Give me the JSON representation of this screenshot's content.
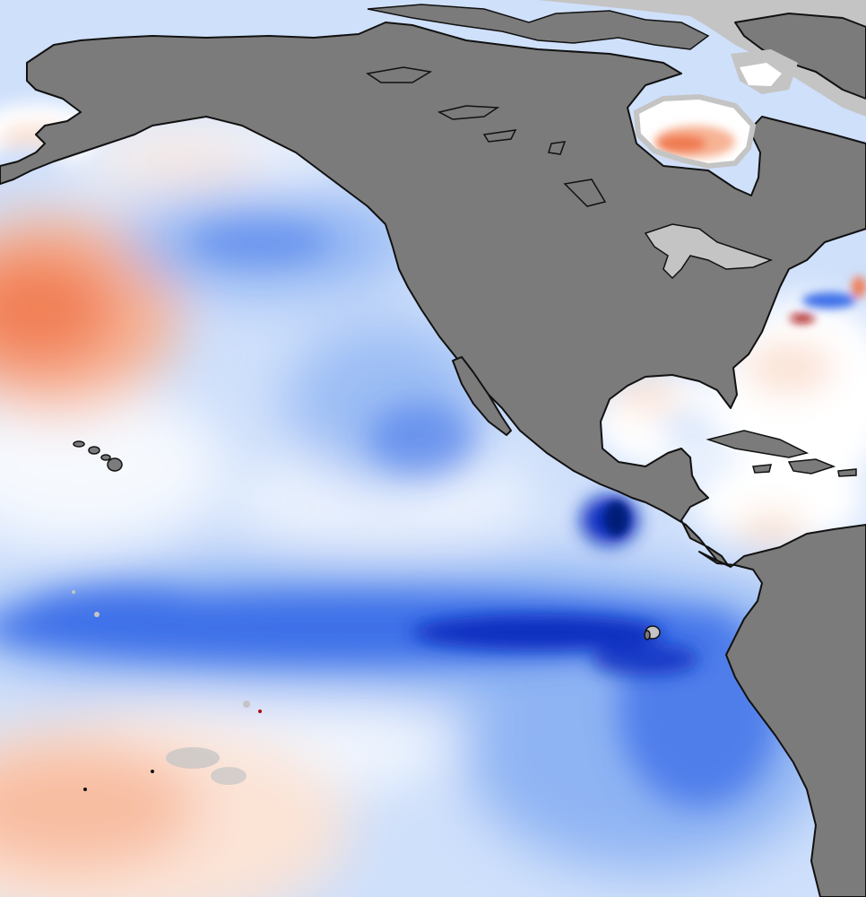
{
  "map": {
    "type": "sea-surface-temperature-anomaly",
    "legend_shown": false,
    "labels_shown": false,
    "colors": {
      "ocean_neutral": "#ffffff",
      "cool_light": "#cfe0fb",
      "cool_mid": "#8fb4f3",
      "cool_strong": "#3d6fe8",
      "cool_deep": "#0b2fbf",
      "cool_extreme": "#021a78",
      "warm_light": "#fbe3d6",
      "warm_mid": "#f7b394",
      "warm_strong": "#f07a50",
      "warm_extreme": "#a80f0f",
      "land": "#7b7b7b",
      "ice": "#c4c4c4",
      "coastline": "#111111"
    },
    "regions": [
      "north-america",
      "south-america",
      "central-america",
      "greenland",
      "hudson-bay",
      "gulf-of-mexico",
      "caribbean",
      "hawaii",
      "galapagos",
      "great-lakes",
      "alaska",
      "baja-california",
      "canadian-arctic-archipelago"
    ],
    "features": [
      "equatorial-cold-tongue",
      "north-pacific-warm-anomaly",
      "gulf-of-tehuantepec-cold-spot",
      "hudson-bay-warm-anomaly",
      "gulf-stream-anomaly",
      "south-pacific-warm-anomaly"
    ]
  }
}
